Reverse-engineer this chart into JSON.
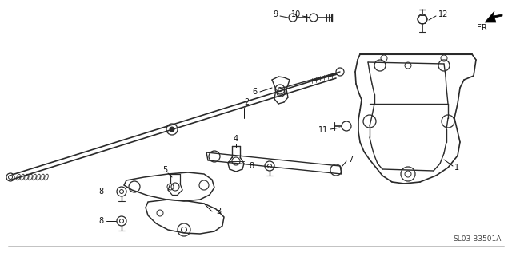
{
  "bg_color": "#ffffff",
  "fig_width": 6.4,
  "fig_height": 3.17,
  "dpi": 100,
  "line_color": "#2a2a2a",
  "label_color": "#111111",
  "fr_label": "FR.",
  "part_code": "SL03-B3501A"
}
